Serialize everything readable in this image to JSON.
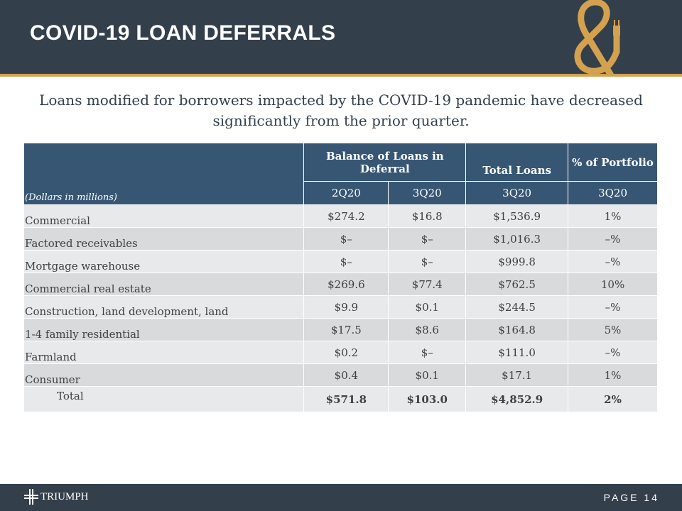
{
  "header": {
    "title": "COVID-19 LOAN DEFERRALS"
  },
  "subtitle": "Loans modified for borrowers impacted by the COVID-19 pandemic have decreased significantly from the prior quarter.",
  "table": {
    "units": "(Dollars in millions)",
    "group_headers": [
      "Balance of Loans in Deferral",
      "Total Loans",
      "% of Portfolio"
    ],
    "periods": [
      "2Q20",
      "3Q20",
      "3Q20",
      "3Q20"
    ],
    "rows": [
      {
        "label": "Commercial",
        "values": [
          "$274.2",
          "$16.8",
          "$1,536.9",
          "1%"
        ]
      },
      {
        "label": "Factored receivables",
        "values": [
          "$–",
          "$–",
          "$1,016.3",
          "–%"
        ]
      },
      {
        "label": "Mortgage warehouse",
        "values": [
          "$–",
          "$–",
          "$999.8",
          "–%"
        ]
      },
      {
        "label": "Commercial real estate",
        "values": [
          "$269.6",
          "$77.4",
          "$762.5",
          "10%"
        ]
      },
      {
        "label": "Construction, land development, land",
        "values": [
          "$9.9",
          "$0.1",
          "$244.5",
          "–%"
        ]
      },
      {
        "label": "1-4 family residential",
        "values": [
          "$17.5",
          "$8.6",
          "$164.8",
          "5%"
        ]
      },
      {
        "label": "Farmland",
        "values": [
          "$0.2",
          "$–",
          "$111.0",
          "–%"
        ]
      },
      {
        "label": "Consumer",
        "values": [
          "$0.4",
          "$0.1",
          "$17.1",
          "1%"
        ]
      },
      {
        "label": "Total",
        "values": [
          "$571.8",
          "$103.0",
          "$4,852.9",
          "2%"
        ]
      }
    ]
  },
  "footer": {
    "brand": "TRIUMPH",
    "page": "PAGE 14"
  },
  "colors": {
    "navy": "#333f4b",
    "gold": "#d4a14f",
    "table_header": "#375674"
  }
}
